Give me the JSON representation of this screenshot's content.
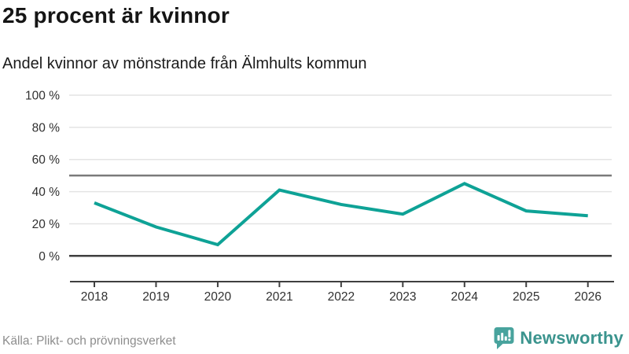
{
  "header": {
    "title": "25 procent är kvinnor",
    "subtitle": "Andel kvinnor av mönstrande från Älmhults kommun"
  },
  "chart_data": {
    "type": "line",
    "title": "25 procent är kvinnor",
    "subtitle": "Andel kvinnor av mönstrande från Älmhults kommun",
    "categories": [
      "2018",
      "2019",
      "2020",
      "2021",
      "2022",
      "2023",
      "2024",
      "2025",
      "2026"
    ],
    "series": [
      {
        "name": "Andel kvinnor av mönstrande",
        "values": [
          33,
          18,
          7,
          41,
          32,
          26,
          45,
          28,
          25
        ]
      }
    ],
    "xlabel": "",
    "ylabel": "",
    "ylim": [
      0,
      100
    ],
    "yticks": [
      0,
      20,
      40,
      60,
      80,
      100
    ],
    "ytick_labels": [
      "0 %",
      "20 %",
      "40 %",
      "60 %",
      "80 %",
      "100 %"
    ],
    "reference_line": 50,
    "grid": true,
    "legend": "none",
    "line_color": "#0ea296",
    "grid_color": "#e4e4e4",
    "reference_color": "#7b7b7b",
    "axis_color": "#3f3f3f",
    "tick_color": "#303030"
  },
  "footer": {
    "source": "Källa: Plikt- och prövningsverket",
    "brand": "Newsworthy",
    "brand_icon": "newsworthy-speech-bubble-barchart-icon",
    "brand_icon_color": "#48a39d",
    "brand_text_color": "#3b948e"
  }
}
